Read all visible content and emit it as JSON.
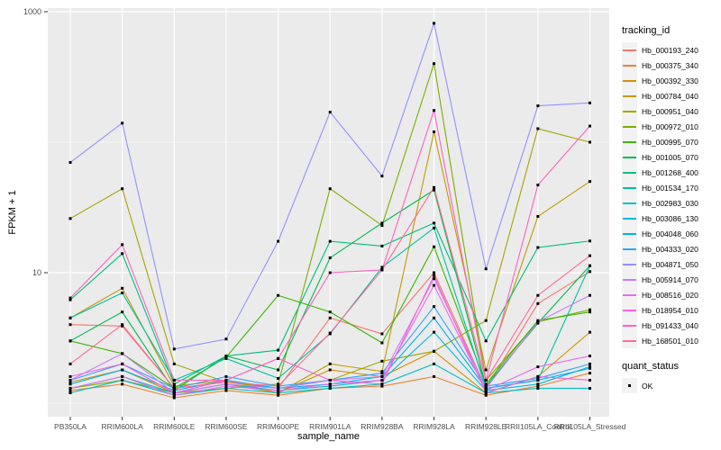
{
  "chart_data": {
    "type": "line",
    "title": "",
    "xlabel": "sample_name",
    "ylabel": "FPKM + 1",
    "y_scale": "log10",
    "y_ticks": [
      {
        "label": "1000",
        "value": 1000
      },
      {
        "label": "10",
        "value": 10
      }
    ],
    "y_minor_gridlines": [
      100,
      1
    ],
    "ylim": [
      0.9,
      1050
    ],
    "grid": "on",
    "point_shape": "small-black-square",
    "categories": [
      "PB350LA",
      "RRIM600LA",
      "RRIM600LE",
      "RRIM600SE",
      "RRIM600PE",
      "RRIM901LA",
      "RRIM928BA",
      "RRIM928LA",
      "RRIM928LE",
      "RRII105LA_Control",
      "RRII105LA_Stressed"
    ],
    "legend": {
      "title": "tracking_id",
      "position": "right"
    },
    "legend2": {
      "title": "quant_status",
      "items": [
        {
          "label": "OK",
          "marker": "black-square"
        }
      ]
    },
    "series": [
      {
        "name": "Hb_000193_240",
        "color": "#F8766D",
        "values": [
          4.0,
          3.9,
          1.3,
          1.45,
          1.3,
          4.5,
          3.4,
          10.0,
          1.3,
          5.8,
          10.2
        ]
      },
      {
        "name": "Hb_000375_340",
        "color": "#EA8331",
        "values": [
          1.25,
          1.4,
          1.1,
          1.25,
          1.15,
          1.3,
          1.35,
          1.6,
          1.15,
          1.35,
          1.7
        ]
      },
      {
        "name": "Hb_000392_330",
        "color": "#D89000",
        "values": [
          1.45,
          1.8,
          1.2,
          1.4,
          1.2,
          1.8,
          1.6,
          2.5,
          1.2,
          1.6,
          3.5
        ]
      },
      {
        "name": "Hb_000784_040",
        "color": "#C09B00",
        "values": [
          4.5,
          7.6,
          1.35,
          1.5,
          1.2,
          2.0,
          1.75,
          120,
          1.8,
          27,
          50
        ]
      },
      {
        "name": "Hb_000951_040",
        "color": "#A3A500",
        "values": [
          26,
          44,
          2.0,
          1.45,
          1.3,
          1.5,
          2.1,
          2.5,
          4.3,
          127,
          100
        ]
      },
      {
        "name": "Hb_000972_010",
        "color": "#7CAE00",
        "values": [
          1.3,
          1.5,
          1.2,
          1.3,
          1.4,
          44,
          23,
          400,
          1.5,
          4.2,
          5.2
        ]
      },
      {
        "name": "Hb_000995_070",
        "color": "#39B600",
        "values": [
          3.0,
          2.4,
          1.3,
          2.25,
          6.7,
          5.0,
          2.9,
          15.8,
          1.4,
          4.3,
          5.0
        ]
      },
      {
        "name": "Hb_001005_070",
        "color": "#00BB4E",
        "values": [
          3.0,
          5.0,
          1.25,
          2.3,
          1.8,
          13,
          24,
          43,
          1.35,
          4.1,
          11.3
        ]
      },
      {
        "name": "Hb_001268_400",
        "color": "#00BF7D",
        "values": [
          6.2,
          14,
          1.4,
          2.3,
          2.55,
          17.4,
          16,
          24,
          3.0,
          15.6,
          17.5
        ]
      },
      {
        "name": "Hb_001534_170",
        "color": "#00C1A3",
        "values": [
          4.5,
          7.0,
          1.5,
          2.2,
          1.55,
          3.4,
          11,
          22,
          1.3,
          1.5,
          11.3
        ]
      },
      {
        "name": "Hb_002983_030",
        "color": "#00BFC4",
        "values": [
          1.2,
          1.5,
          1.15,
          1.3,
          1.2,
          1.3,
          1.4,
          2.0,
          1.2,
          1.3,
          1.3
        ]
      },
      {
        "name": "Hb_003086_130",
        "color": "#00BAE0",
        "values": [
          1.3,
          1.6,
          1.2,
          1.4,
          1.25,
          1.35,
          1.5,
          3.5,
          1.25,
          1.4,
          1.9
        ]
      },
      {
        "name": "Hb_004048_060",
        "color": "#00B0F6",
        "values": [
          1.4,
          1.8,
          1.25,
          1.5,
          1.3,
          1.4,
          1.6,
          4.5,
          1.3,
          1.5,
          1.85
        ]
      },
      {
        "name": "Hb_004333_020",
        "color": "#35A2FF",
        "values": [
          1.5,
          2.0,
          1.3,
          1.6,
          1.35,
          1.5,
          1.7,
          5.5,
          1.35,
          1.55,
          2.0
        ]
      },
      {
        "name": "Hb_004871_050",
        "color": "#9590FF",
        "values": [
          70,
          140,
          2.6,
          3.1,
          17.4,
          170,
          55,
          815,
          10.7,
          190,
          200
        ]
      },
      {
        "name": "Hb_005914_070",
        "color": "#C77CFF",
        "values": [
          1.5,
          2.4,
          1.2,
          1.4,
          1.3,
          1.5,
          1.6,
          9.0,
          1.3,
          4.2,
          6.7
        ]
      },
      {
        "name": "Hb_008516_020",
        "color": "#E76BF3",
        "values": [
          1.3,
          1.6,
          1.15,
          1.35,
          1.25,
          1.4,
          1.5,
          8.0,
          1.25,
          1.9,
          2.3
        ]
      },
      {
        "name": "Hb_018954_010",
        "color": "#FA62DB",
        "values": [
          1.6,
          2.0,
          1.2,
          1.5,
          2.2,
          1.5,
          1.4,
          9.5,
          1.2,
          1.6,
          1.5
        ]
      },
      {
        "name": "Hb_091433_040",
        "color": "#FF62BC",
        "values": [
          6.4,
          16.4,
          1.5,
          1.5,
          2.2,
          10,
          10.5,
          175,
          1.5,
          47,
          133
        ]
      },
      {
        "name": "Hb_168501_010",
        "color": "#FF6A98",
        "values": [
          2.0,
          4.0,
          1.3,
          1.45,
          1.35,
          3.45,
          10.5,
          45,
          1.5,
          6.7,
          13.5
        ]
      }
    ],
    "style": {
      "panel_bg": "#EBEBEB",
      "gridline_color": "#FFFFFF",
      "tick_color": "#333333",
      "tick_label_color": "#4D4D4D",
      "point_color": "#000000"
    }
  }
}
